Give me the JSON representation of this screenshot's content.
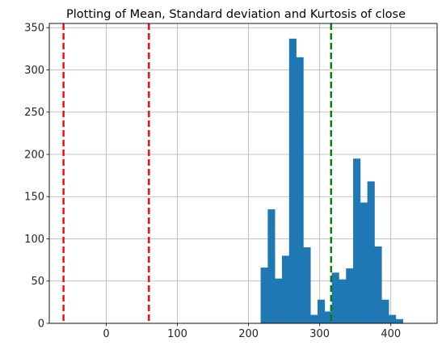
{
  "chart_data": {
    "type": "bar",
    "title": "Plotting of Mean, Standard deviation and Kurtosis of close",
    "xlabel": "",
    "ylabel": "",
    "xlim": [
      -80,
      465
    ],
    "ylim": [
      0,
      355
    ],
    "xticks": [
      0,
      100,
      200,
      300,
      400
    ],
    "yticks": [
      0,
      50,
      100,
      150,
      200,
      250,
      300,
      350
    ],
    "grid": true,
    "bar_color": "#1f77b4",
    "bins": [
      {
        "x0": 217,
        "x1": 227,
        "count": 66
      },
      {
        "x0": 227,
        "x1": 237,
        "count": 135
      },
      {
        "x0": 237,
        "x1": 247,
        "count": 53
      },
      {
        "x0": 247,
        "x1": 257,
        "count": 80
      },
      {
        "x0": 257,
        "x1": 267,
        "count": 337
      },
      {
        "x0": 267,
        "x1": 277,
        "count": 315
      },
      {
        "x0": 277,
        "x1": 287,
        "count": 90
      },
      {
        "x0": 287,
        "x1": 297,
        "count": 10
      },
      {
        "x0": 297,
        "x1": 307,
        "count": 28
      },
      {
        "x0": 307,
        "x1": 317,
        "count": 14
      },
      {
        "x0": 317,
        "x1": 327,
        "count": 60
      },
      {
        "x0": 327,
        "x1": 337,
        "count": 52
      },
      {
        "x0": 337,
        "x1": 347,
        "count": 65
      },
      {
        "x0": 347,
        "x1": 357,
        "count": 195
      },
      {
        "x0": 357,
        "x1": 367,
        "count": 143
      },
      {
        "x0": 367,
        "x1": 377,
        "count": 168
      },
      {
        "x0": 377,
        "x1": 387,
        "count": 91
      },
      {
        "x0": 387,
        "x1": 397,
        "count": 28
      },
      {
        "x0": 397,
        "x1": 407,
        "count": 10
      },
      {
        "x0": 407,
        "x1": 417,
        "count": 5
      }
    ],
    "vlines": [
      {
        "x": -60,
        "color": "#ff0000",
        "style": "dashed"
      },
      {
        "x": 60,
        "color": "#ff0000",
        "style": "dashed"
      },
      {
        "x": 316,
        "color": "#008000",
        "style": "dashed"
      }
    ]
  }
}
